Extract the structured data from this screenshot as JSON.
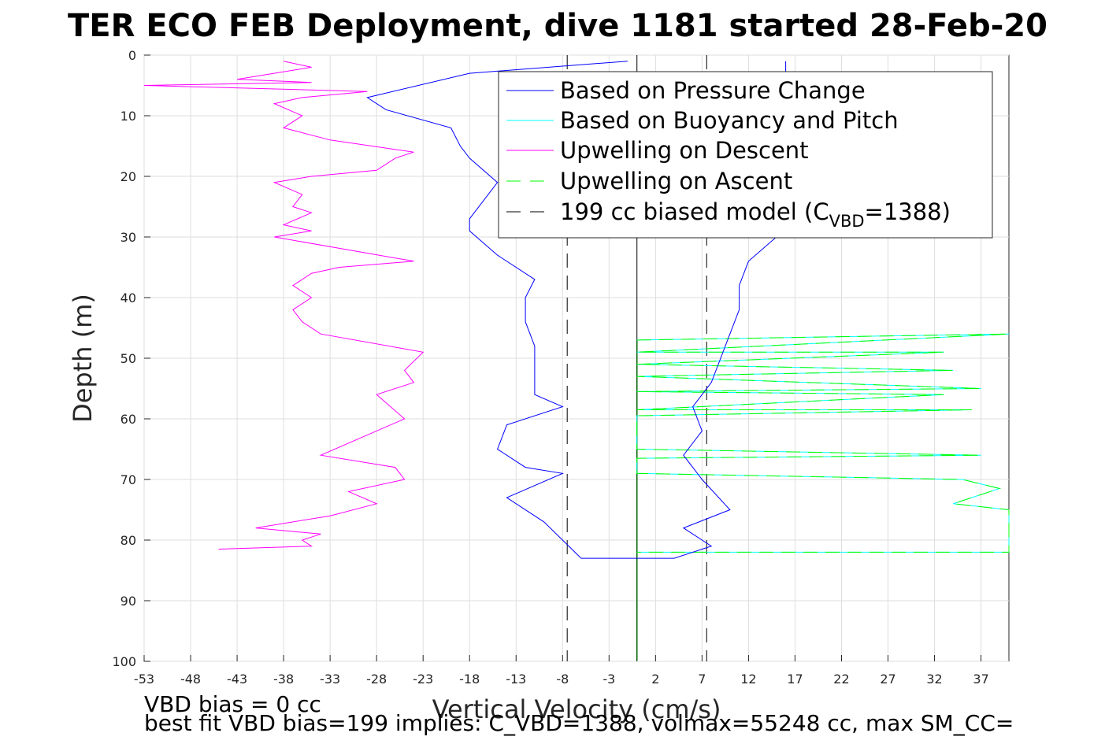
{
  "chart_data": {
    "type": "line",
    "title": "TER ECO FEB Deployment, dive 1181 started 28-Feb-20",
    "xlabel": "Vertical Velocity (cm/s)",
    "ylabel": "Depth (m)",
    "xlim": [
      -53,
      40
    ],
    "ylim": [
      0,
      100
    ],
    "y_reversed": true,
    "grid": true,
    "x_ticks": [
      "-53",
      "-48",
      "-43",
      "-38",
      "-33",
      "-28",
      "-23",
      "-18",
      "-13",
      "-8",
      "-3",
      "2",
      "7",
      "12",
      "17",
      "22",
      "27",
      "32",
      "37"
    ],
    "y_ticks": [
      "0",
      "10",
      "20",
      "30",
      "40",
      "50",
      "60",
      "70",
      "80",
      "90",
      "100"
    ],
    "legend": {
      "placement": "top-right",
      "entries": [
        {
          "label": "Based on Pressure Change",
          "color": "#0000ff",
          "dash": "solid"
        },
        {
          "label": "Based on Buoyancy and Pitch",
          "color": "#00ffff",
          "dash": "solid"
        },
        {
          "label": "Upwelling on Descent",
          "color": "#ff00ff",
          "dash": "solid"
        },
        {
          "label": "Upwelling on Ascent",
          "color": "#00ff00",
          "dash": "dashed"
        },
        {
          "label_main": "199 cc biased model (C",
          "label_sub": "VBD",
          "label_tail": "=1388)",
          "color": "#000000",
          "dash": "dashed"
        }
      ]
    },
    "series": [
      {
        "name": "Based on Pressure Change",
        "color": "#0000ff",
        "points": [
          [
            -1,
            1
          ],
          [
            -18,
            3
          ],
          [
            -29,
            7
          ],
          [
            -27,
            9
          ],
          [
            -20,
            12
          ],
          [
            -19,
            15
          ],
          [
            -18,
            17
          ],
          [
            -15,
            21
          ],
          [
            -18,
            27
          ],
          [
            -18,
            29
          ],
          [
            -15,
            33
          ],
          [
            -11,
            37
          ],
          [
            -12,
            40
          ],
          [
            -12,
            44
          ],
          [
            -11,
            48
          ],
          [
            -11,
            52
          ],
          [
            -11,
            56
          ],
          [
            -8,
            58
          ],
          [
            -14,
            61
          ],
          [
            -15,
            65
          ],
          [
            -12,
            68
          ],
          [
            -8,
            69
          ],
          [
            -14,
            73
          ],
          [
            -10,
            77
          ],
          [
            -8,
            80
          ],
          [
            -6,
            83
          ],
          [
            -3,
            83
          ],
          [
            4,
            83
          ],
          [
            8,
            81
          ],
          [
            5,
            78
          ],
          [
            10,
            75
          ],
          [
            7,
            70
          ],
          [
            5,
            66
          ],
          [
            7,
            62
          ],
          [
            6,
            58
          ],
          [
            8,
            54
          ],
          [
            9,
            50
          ],
          [
            10,
            46
          ],
          [
            11,
            42
          ],
          [
            11,
            38
          ],
          [
            12,
            34
          ],
          [
            15,
            30
          ],
          [
            14,
            26
          ],
          [
            14,
            22
          ],
          [
            15,
            18
          ],
          [
            15,
            13
          ],
          [
            16,
            9
          ],
          [
            16,
            5
          ],
          [
            16,
            1
          ]
        ]
      },
      {
        "name": "Based on Buoyancy and Pitch",
        "color": "#00ffff",
        "points": [
          [
            0,
            47
          ],
          [
            40,
            46
          ],
          [
            0,
            49
          ],
          [
            33,
            49
          ],
          [
            0,
            51
          ],
          [
            34,
            52
          ],
          [
            0,
            53
          ],
          [
            37,
            55
          ],
          [
            0,
            55.5
          ],
          [
            33,
            56
          ],
          [
            0,
            58.5
          ],
          [
            36,
            58.5
          ],
          [
            0,
            59.5
          ],
          [
            0,
            65
          ],
          [
            37,
            66
          ],
          [
            0,
            66.5
          ],
          [
            0,
            69
          ],
          [
            35,
            70
          ],
          [
            39,
            71.5
          ],
          [
            34,
            74
          ],
          [
            40,
            75
          ],
          [
            40,
            82
          ],
          [
            0,
            82
          ]
        ]
      },
      {
        "name": "Upwelling on Descent",
        "color": "#ff00ff",
        "points": [
          [
            -38,
            1
          ],
          [
            -35,
            2
          ],
          [
            -43,
            4
          ],
          [
            -35,
            4.5
          ],
          [
            -53,
            5
          ],
          [
            -29,
            6
          ],
          [
            -36,
            7
          ],
          [
            -39,
            8
          ],
          [
            -36,
            10
          ],
          [
            -38,
            12
          ],
          [
            -33,
            14
          ],
          [
            -24,
            16
          ],
          [
            -26,
            17
          ],
          [
            -28,
            19
          ],
          [
            -35,
            20
          ],
          [
            -39,
            21
          ],
          [
            -36,
            23
          ],
          [
            -37,
            25
          ],
          [
            -35,
            26
          ],
          [
            -38,
            28
          ],
          [
            -35,
            29
          ],
          [
            -39,
            30
          ],
          [
            -24,
            34
          ],
          [
            -32,
            35
          ],
          [
            -35,
            36
          ],
          [
            -37,
            38
          ],
          [
            -35,
            40
          ],
          [
            -37,
            42
          ],
          [
            -36,
            44
          ],
          [
            -34,
            46
          ],
          [
            -23,
            49
          ],
          [
            -25,
            52
          ],
          [
            -24,
            54
          ],
          [
            -28,
            56
          ],
          [
            -25,
            60
          ],
          [
            -34,
            66
          ],
          [
            -26,
            68
          ],
          [
            -25,
            70
          ],
          [
            -31,
            72
          ],
          [
            -28,
            74
          ],
          [
            -33,
            76
          ],
          [
            -41,
            78
          ],
          [
            -34,
            79
          ],
          [
            -36,
            80
          ],
          [
            -35,
            81
          ],
          [
            -45,
            81.5
          ]
        ]
      },
      {
        "name": "Upwelling on Ascent",
        "color": "#00ff00",
        "points": [
          [
            0,
            47
          ],
          [
            40,
            46
          ],
          [
            0,
            49
          ],
          [
            33,
            49
          ],
          [
            0,
            51
          ],
          [
            34,
            52
          ],
          [
            0,
            53
          ],
          [
            37,
            55
          ],
          [
            0,
            55.5
          ],
          [
            33,
            56
          ],
          [
            0,
            58.5
          ],
          [
            36,
            58.5
          ],
          [
            0,
            59.5
          ],
          [
            0,
            65
          ],
          [
            37,
            66
          ],
          [
            0,
            66.5
          ],
          [
            0,
            69
          ],
          [
            35,
            70
          ],
          [
            39,
            71.5
          ],
          [
            34,
            74
          ],
          [
            40,
            75
          ],
          [
            40,
            82
          ],
          [
            0,
            82
          ]
        ]
      },
      {
        "name": "199 cc biased model (CVBD=1388)",
        "color": "#000000",
        "points": [
          [
            -7.5,
            0
          ],
          [
            -7.5,
            100
          ],
          [
            7.5,
            0
          ],
          [
            7.5,
            100
          ]
        ]
      }
    ]
  },
  "footer": {
    "line1": "VBD bias = 0 cc",
    "line2": "best fit VBD bias=199 implies: C_VBD=1388, volmax=55248 cc, max SM_CC="
  }
}
